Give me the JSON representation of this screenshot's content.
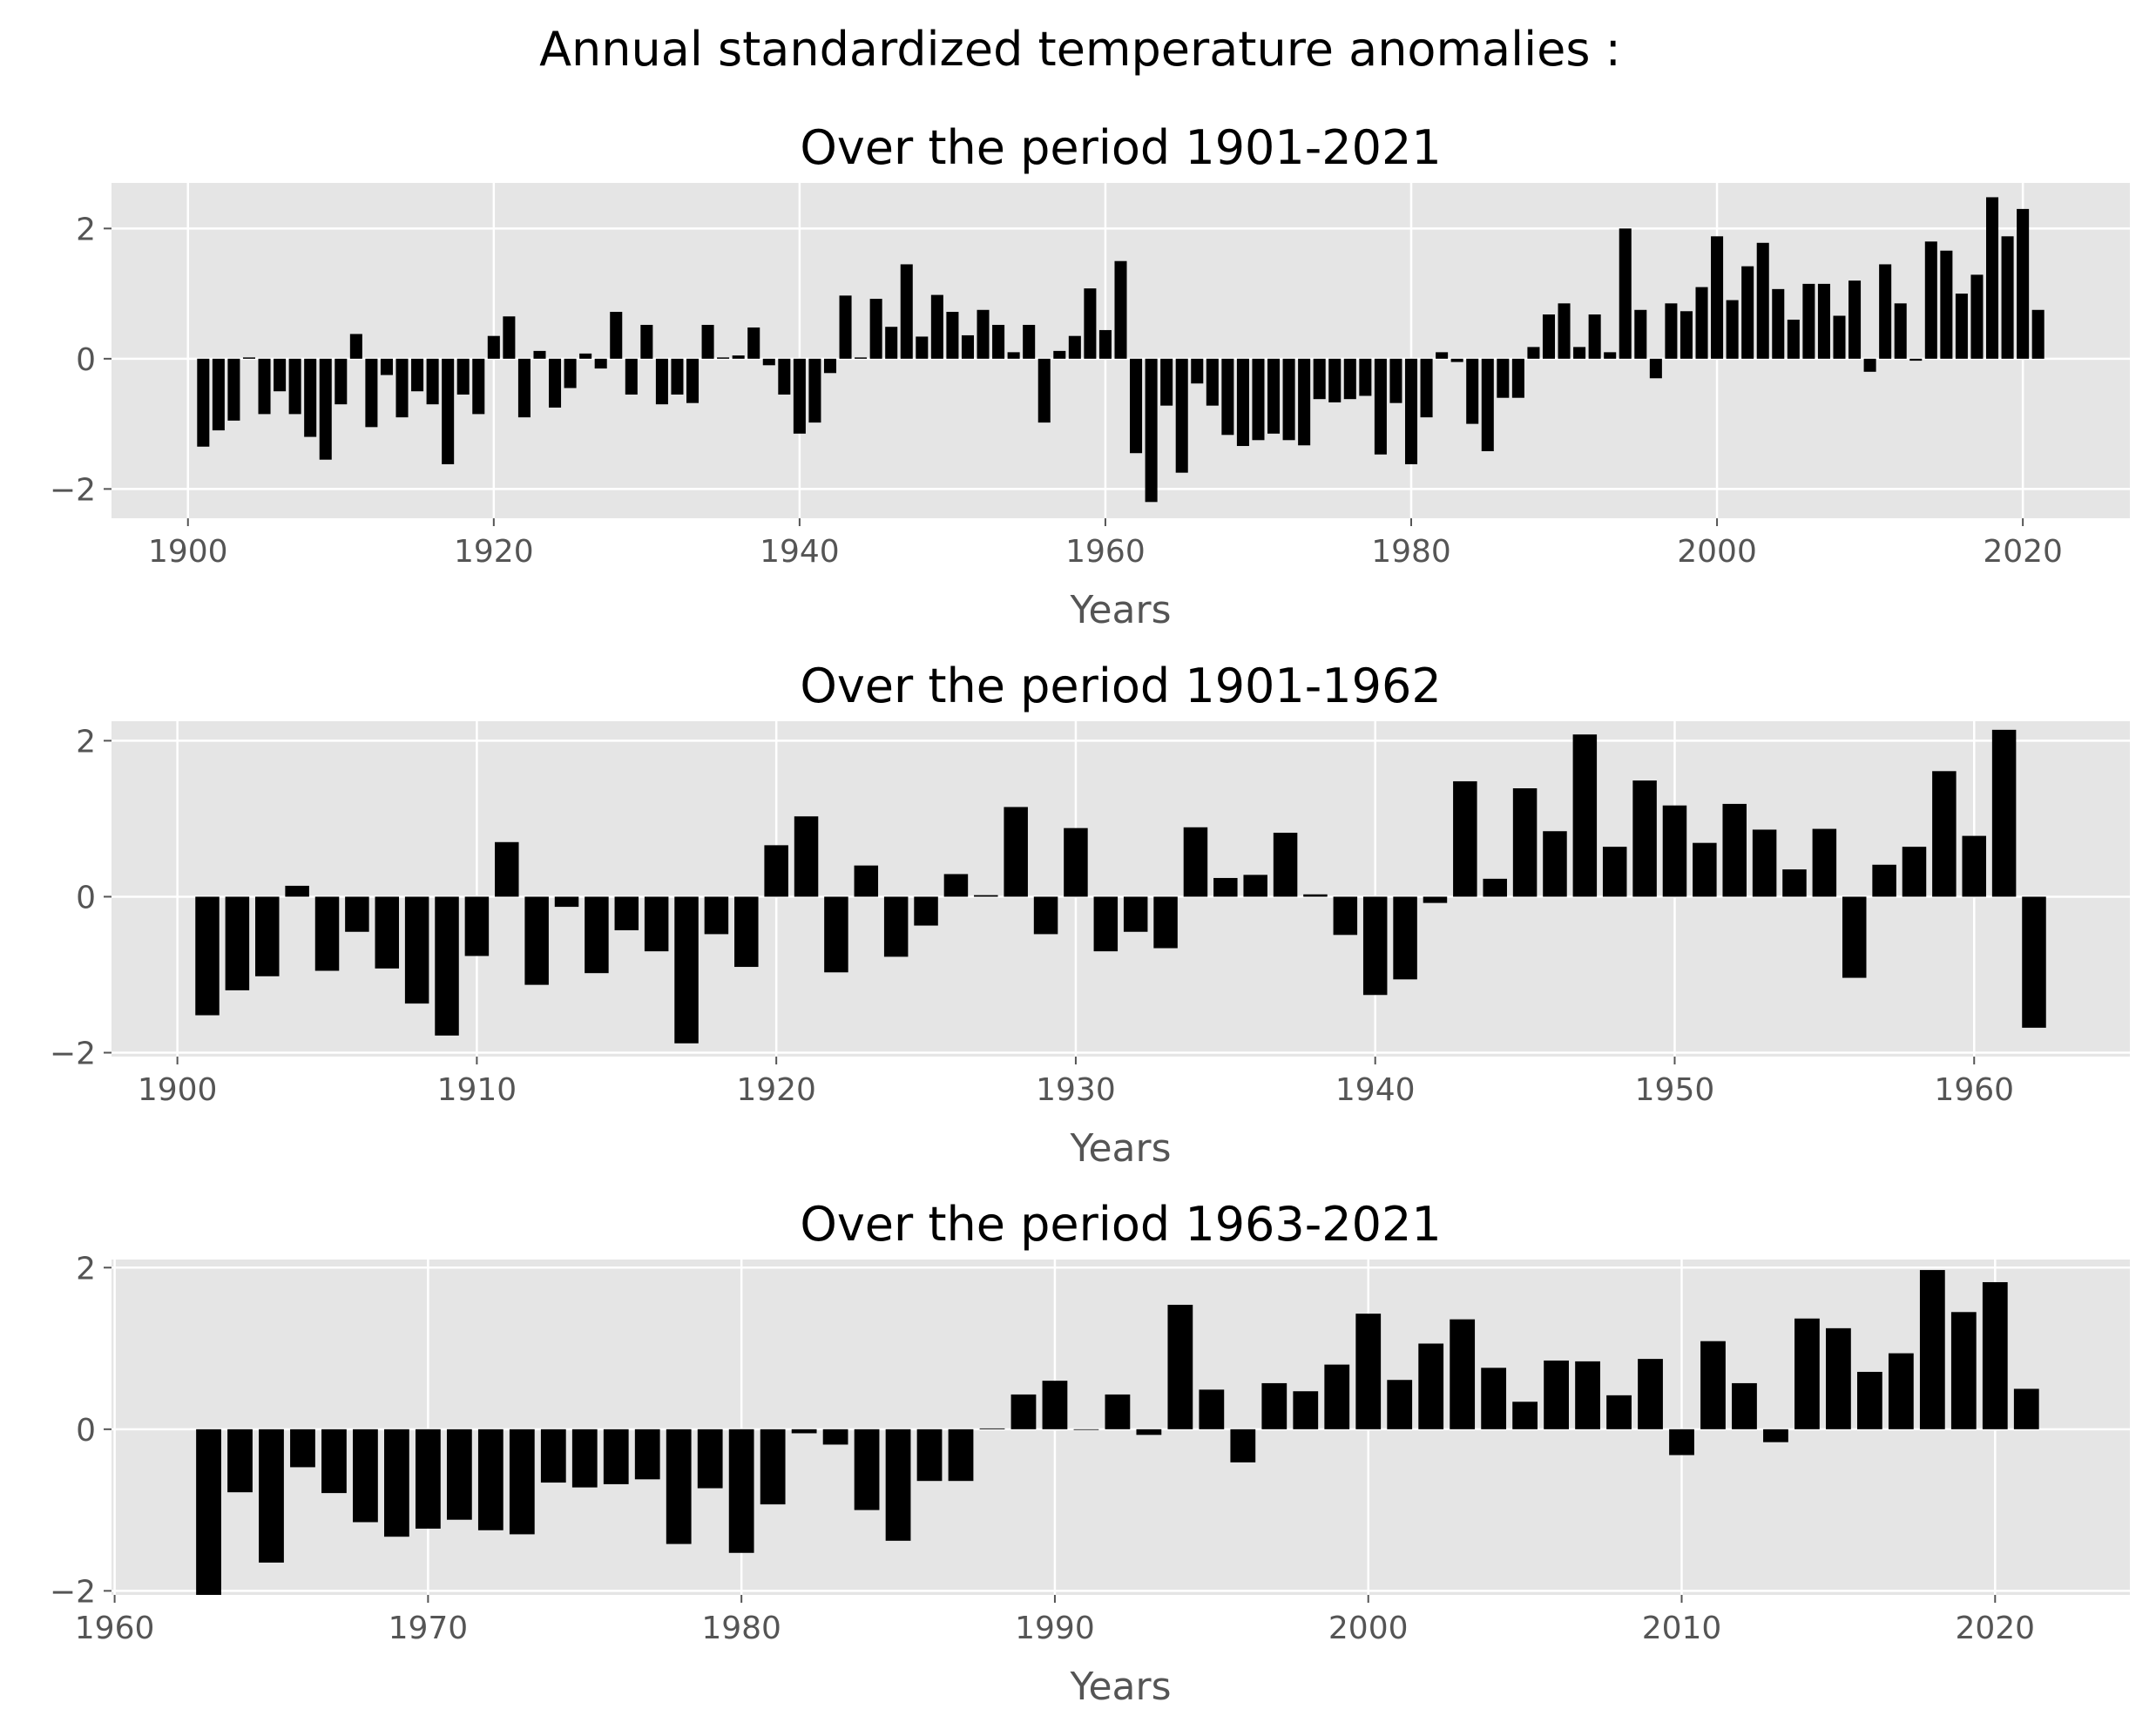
{
  "figure": {
    "suptitle": "Annual standardized temperature anomalies :",
    "bar_color": "#000000",
    "plot_background": "#e5e5e5",
    "grid_color": "#ffffff",
    "tick_label_color": "#555555"
  },
  "chart_data": [
    {
      "type": "bar",
      "title": "Over the period 1901-2021",
      "xlabel": "Years",
      "ylabel": "",
      "grid": true,
      "xlim": [
        1895,
        2027
      ],
      "ylim": [
        -2.45,
        2.7
      ],
      "xticks": [
        1900,
        1920,
        1940,
        1960,
        1980,
        2000,
        2020
      ],
      "yticks": [
        -2,
        0,
        2
      ],
      "ytick_labels": [
        "−2",
        "0",
        "2"
      ],
      "x": [
        1901,
        1902,
        1903,
        1904,
        1905,
        1906,
        1907,
        1908,
        1909,
        1910,
        1911,
        1912,
        1913,
        1914,
        1915,
        1916,
        1917,
        1918,
        1919,
        1920,
        1921,
        1922,
        1923,
        1924,
        1925,
        1926,
        1927,
        1928,
        1929,
        1930,
        1931,
        1932,
        1933,
        1934,
        1935,
        1936,
        1937,
        1938,
        1939,
        1940,
        1941,
        1942,
        1943,
        1944,
        1945,
        1946,
        1947,
        1948,
        1949,
        1950,
        1951,
        1952,
        1953,
        1954,
        1955,
        1956,
        1957,
        1958,
        1959,
        1960,
        1961,
        1962,
        1963,
        1964,
        1965,
        1966,
        1967,
        1968,
        1969,
        1970,
        1971,
        1972,
        1973,
        1974,
        1975,
        1976,
        1977,
        1978,
        1979,
        1980,
        1981,
        1982,
        1983,
        1984,
        1985,
        1986,
        1987,
        1988,
        1989,
        1990,
        1991,
        1992,
        1993,
        1994,
        1995,
        1996,
        1997,
        1998,
        1999,
        2000,
        2001,
        2002,
        2003,
        2004,
        2005,
        2006,
        2007,
        2008,
        2009,
        2010,
        2011,
        2012,
        2013,
        2014,
        2015,
        2016,
        2017,
        2018,
        2019,
        2020,
        2021
      ],
      "values": [
        -1.35,
        -1.1,
        -0.95,
        0.02,
        -0.85,
        -0.5,
        -0.85,
        -1.2,
        -1.55,
        -0.7,
        0.38,
        -1.05,
        -0.25,
        -0.9,
        -0.5,
        -0.7,
        -1.62,
        -0.55,
        -0.85,
        0.35,
        0.65,
        -0.9,
        0.12,
        -0.75,
        -0.45,
        0.08,
        -0.15,
        0.72,
        -0.55,
        0.52,
        -0.7,
        -0.55,
        -0.68,
        0.52,
        0.02,
        0.05,
        0.48,
        -0.1,
        -0.55,
        -1.15,
        -0.98,
        -0.22,
        0.97,
        0.02,
        0.92,
        0.49,
        1.45,
        0.34,
        0.98,
        0.72,
        0.36,
        0.75,
        0.52,
        0.1,
        0.52,
        -0.98,
        0.12,
        0.35,
        1.08,
        0.44,
        1.5,
        -1.45,
        -2.2,
        -0.72,
        -1.75,
        -0.38,
        -0.72,
        -1.17,
        -1.34,
        -1.25,
        -1.15,
        -1.25,
        -1.33,
        -0.62,
        -0.67,
        -0.62,
        -0.57,
        -1.47,
        -0.68,
        -1.62,
        -0.9,
        0.1,
        -0.05,
        -1.0,
        -1.42,
        -0.6,
        -0.6,
        0.18,
        0.68,
        0.85,
        0.18,
        0.68,
        0.1,
        2.0,
        0.75,
        -0.3,
        0.85,
        0.73,
        1.1,
        1.88,
        0.9,
        1.42,
        1.78,
        1.07,
        0.6,
        1.15,
        1.15,
        0.66,
        1.2,
        -0.2,
        1.45,
        0.85,
        -0.03,
        1.8,
        1.66,
        1.0,
        1.29,
        2.48,
        1.88,
        2.3,
        0.75
      ]
    },
    {
      "type": "bar",
      "title": "Over the period 1901-1962",
      "xlabel": "Years",
      "ylabel": "",
      "grid": true,
      "xlim": [
        1897.8,
        1965.2
      ],
      "ylim": [
        -2.05,
        2.25
      ],
      "xticks": [
        1900,
        1910,
        1920,
        1930,
        1940,
        1950,
        1960
      ],
      "yticks": [
        -2,
        0,
        2
      ],
      "ytick_labels": [
        "−2",
        "0",
        "2"
      ],
      "x": [
        1901,
        1902,
        1903,
        1904,
        1905,
        1906,
        1907,
        1908,
        1909,
        1910,
        1911,
        1912,
        1913,
        1914,
        1915,
        1916,
        1917,
        1918,
        1919,
        1920,
        1921,
        1922,
        1923,
        1924,
        1925,
        1926,
        1927,
        1928,
        1929,
        1930,
        1931,
        1932,
        1933,
        1934,
        1935,
        1936,
        1937,
        1938,
        1939,
        1940,
        1941,
        1942,
        1943,
        1944,
        1945,
        1946,
        1947,
        1948,
        1949,
        1950,
        1951,
        1952,
        1953,
        1954,
        1955,
        1956,
        1957,
        1958,
        1959,
        1960,
        1961,
        1962
      ],
      "values": [
        -1.52,
        -1.2,
        -1.02,
        0.14,
        -0.95,
        -0.45,
        -0.92,
        -1.37,
        -1.78,
        -0.76,
        0.7,
        -1.13,
        -0.13,
        -0.98,
        -0.43,
        -0.7,
        -1.88,
        -0.48,
        -0.9,
        0.66,
        1.03,
        -0.97,
        0.4,
        -0.77,
        -0.37,
        0.29,
        0.02,
        1.15,
        -0.48,
        0.88,
        -0.7,
        -0.45,
        -0.66,
        0.89,
        0.24,
        0.28,
        0.82,
        0.03,
        -0.49,
        -1.26,
        -1.06,
        -0.08,
        1.48,
        0.23,
        1.39,
        0.84,
        2.08,
        0.64,
        1.49,
        1.17,
        0.69,
        1.19,
        0.86,
        0.35,
        0.87,
        -1.04,
        0.41,
        0.64,
        1.61,
        0.78,
        2.14,
        -1.68
      ]
    },
    {
      "type": "bar",
      "title": "Over the period 1963-2021",
      "xlabel": "Years",
      "ylabel": "",
      "grid": true,
      "xlim": [
        1959.9,
        2024.3
      ],
      "ylim": [
        -2.05,
        2.1
      ],
      "xticks": [
        1960,
        1970,
        1980,
        1990,
        2000,
        2010,
        2020
      ],
      "yticks": [
        -2,
        0,
        2
      ],
      "ytick_labels": [
        "−2",
        "0",
        "2"
      ],
      "x": [
        1963,
        1964,
        1965,
        1966,
        1967,
        1968,
        1969,
        1970,
        1971,
        1972,
        1973,
        1974,
        1975,
        1976,
        1977,
        1978,
        1979,
        1980,
        1981,
        1982,
        1983,
        1984,
        1985,
        1986,
        1987,
        1988,
        1989,
        1990,
        1991,
        1992,
        1993,
        1994,
        1995,
        1996,
        1997,
        1998,
        1999,
        2000,
        2001,
        2002,
        2003,
        2004,
        2005,
        2006,
        2007,
        2008,
        2009,
        2010,
        2011,
        2012,
        2013,
        2014,
        2015,
        2016,
        2017,
        2018,
        2019,
        2020,
        2021
      ],
      "values": [
        -2.05,
        -0.78,
        -1.65,
        -0.47,
        -0.79,
        -1.15,
        -1.33,
        -1.23,
        -1.12,
        -1.25,
        -1.3,
        -0.66,
        -0.72,
        -0.68,
        -0.62,
        -1.42,
        -0.73,
        -1.53,
        -0.93,
        -0.05,
        -0.19,
        -1.0,
        -1.38,
        -0.64,
        -0.64,
        0.01,
        0.43,
        0.6,
        0.0,
        0.43,
        -0.07,
        1.54,
        0.49,
        -0.41,
        0.57,
        0.47,
        0.8,
        1.43,
        0.61,
        1.06,
        1.36,
        0.76,
        0.34,
        0.85,
        0.84,
        0.42,
        0.87,
        -0.32,
        1.09,
        0.57,
        -0.16,
        1.37,
        1.25,
        0.71,
        0.94,
        1.97,
        1.45,
        1.82,
        0.5
      ]
    }
  ]
}
